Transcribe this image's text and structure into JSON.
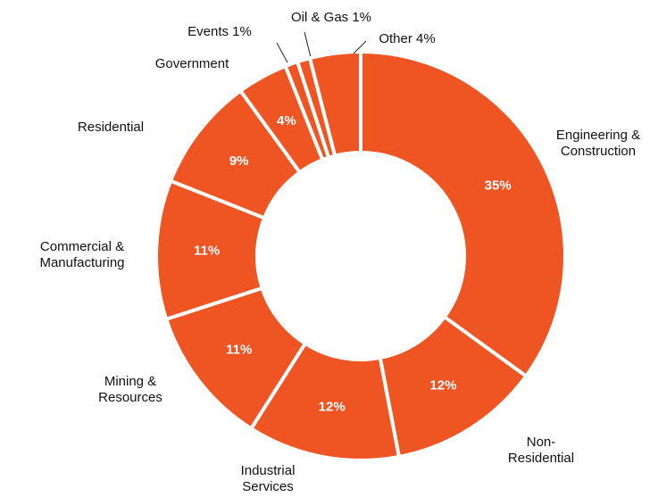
{
  "chart_data": {
    "type": "donut",
    "categories": [
      "Engineering &\nConstruction",
      "Non-\nResidential",
      "Industrial\nServices",
      "Mining &\nResources",
      "Commercial &\nManufacturing",
      "Residential",
      "Government",
      "Events",
      "Oil & Gas",
      "Other"
    ],
    "values": [
      35,
      12,
      12,
      11,
      11,
      9,
      4,
      1,
      1,
      4
    ],
    "value_labels": [
      "35%",
      "12%",
      "12%",
      "11%",
      "11%",
      "9%",
      "4%",
      "1%",
      "1%",
      "4%"
    ],
    "color": "#ef5523"
  }
}
